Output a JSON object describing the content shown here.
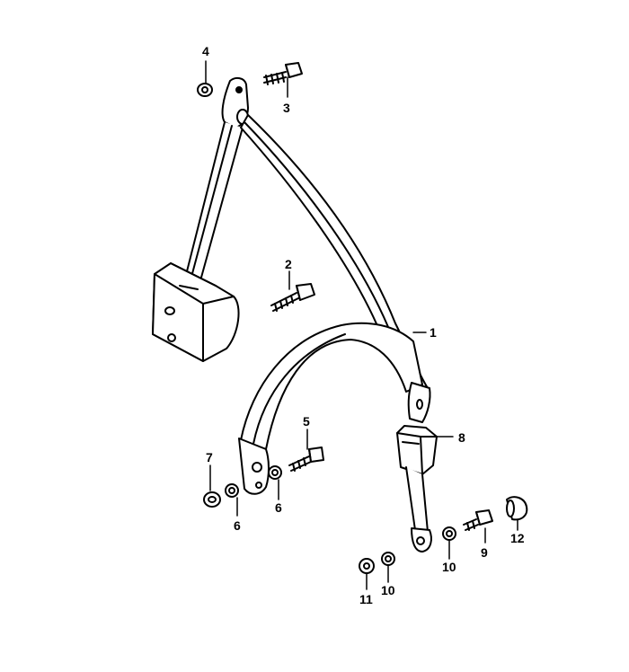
{
  "callouts": {
    "c1": "1",
    "c2": "2",
    "c3": "3",
    "c4": "4",
    "c5": "5",
    "c6a": "6",
    "c6b": "6",
    "c7": "7",
    "c8": "8",
    "c9": "9",
    "c10a": "10",
    "c10b": "10",
    "c11": "11",
    "c12": "12"
  }
}
